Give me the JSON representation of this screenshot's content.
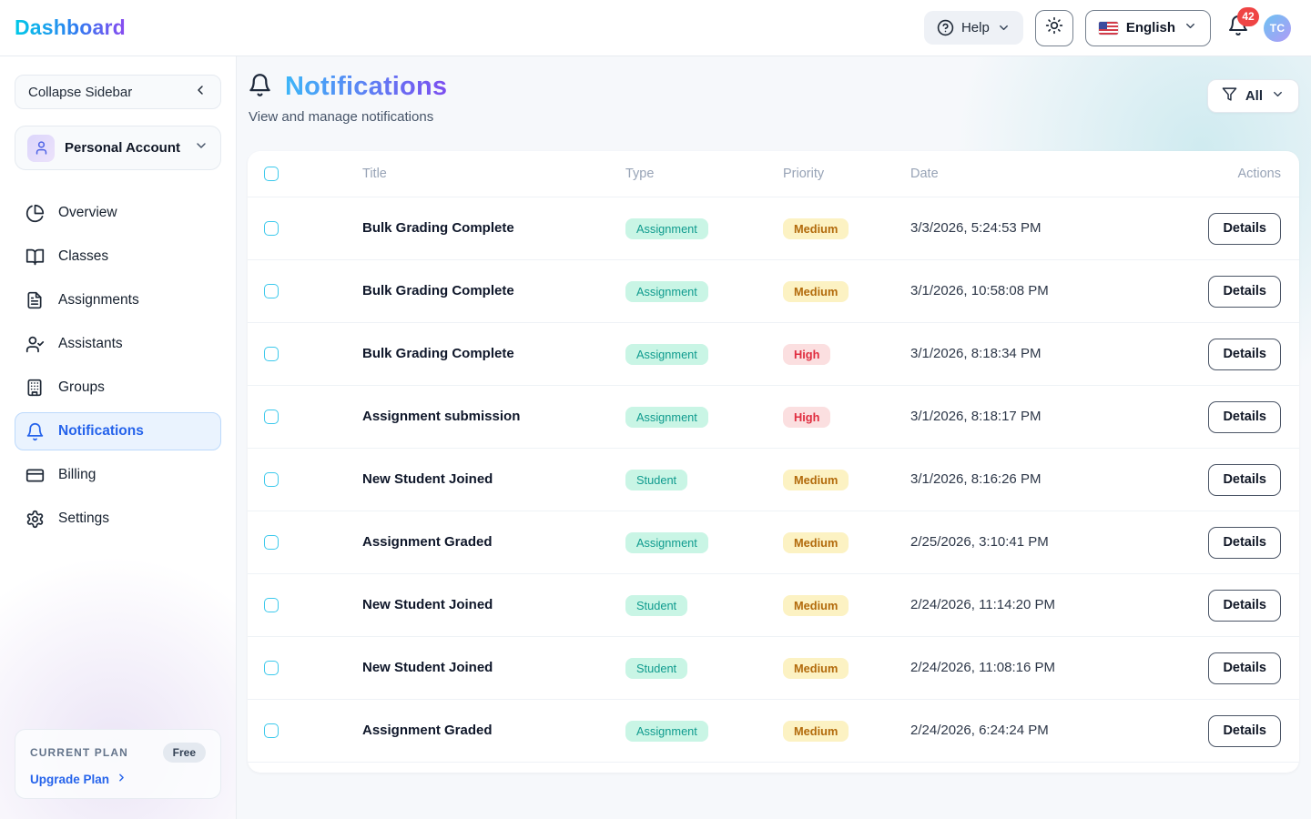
{
  "header": {
    "logo": "Dashboard",
    "help_label": "Help",
    "language": "English",
    "notification_count": "42",
    "avatar_initials": "TC"
  },
  "sidebar": {
    "collapse_label": "Collapse Sidebar",
    "account_label": "Personal Account",
    "items": [
      {
        "label": "Overview",
        "icon": "pie-chart-icon",
        "active": false
      },
      {
        "label": "Classes",
        "icon": "book-open-icon",
        "active": false
      },
      {
        "label": "Assignments",
        "icon": "file-text-icon",
        "active": false
      },
      {
        "label": "Assistants",
        "icon": "user-check-icon",
        "active": false
      },
      {
        "label": "Groups",
        "icon": "building-icon",
        "active": false
      },
      {
        "label": "Notifications",
        "icon": "bell-icon",
        "active": true
      },
      {
        "label": "Billing",
        "icon": "credit-card-icon",
        "active": false
      },
      {
        "label": "Settings",
        "icon": "gear-icon",
        "active": false
      }
    ],
    "plan": {
      "label": "CURRENT PLAN",
      "badge": "Free",
      "upgrade_label": "Upgrade Plan"
    }
  },
  "main": {
    "title": "Notifications",
    "subtitle": "View and manage notifications",
    "filter_label": "All",
    "table": {
      "columns": [
        "Title",
        "Type",
        "Priority",
        "Date",
        "Actions"
      ],
      "action_label": "Details",
      "rows": [
        {
          "title": "Bulk Grading Complete",
          "type": "Assignment",
          "priority": "Medium",
          "date": "3/3/2026, 5:24:53 PM"
        },
        {
          "title": "Bulk Grading Complete",
          "type": "Assignment",
          "priority": "Medium",
          "date": "3/1/2026, 10:58:08 PM"
        },
        {
          "title": "Bulk Grading Complete",
          "type": "Assignment",
          "priority": "High",
          "date": "3/1/2026, 8:18:34 PM"
        },
        {
          "title": "Assignment submission",
          "type": "Assignment",
          "priority": "High",
          "date": "3/1/2026, 8:18:17 PM"
        },
        {
          "title": "New Student Joined",
          "type": "Student",
          "priority": "Medium",
          "date": "3/1/2026, 8:16:26 PM"
        },
        {
          "title": "Assignment Graded",
          "type": "Assignment",
          "priority": "Medium",
          "date": "2/25/2026, 3:10:41 PM"
        },
        {
          "title": "New Student Joined",
          "type": "Student",
          "priority": "Medium",
          "date": "2/24/2026, 11:14:20 PM"
        },
        {
          "title": "New Student Joined",
          "type": "Student",
          "priority": "Medium",
          "date": "2/24/2026, 11:08:16 PM"
        },
        {
          "title": "Assignment Graded",
          "type": "Assignment",
          "priority": "Medium",
          "date": "2/24/2026, 6:24:24 PM"
        }
      ]
    }
  },
  "colors": {
    "accent_blue": "#2563eb",
    "badge_mint_bg": "#c9f5e5",
    "badge_mint_text": "#0f9b8e",
    "badge_yellow_bg": "#fcf2c3",
    "badge_yellow_text": "#b26a0b",
    "badge_red_bg": "#fbdfe0",
    "badge_red_text": "#e02d3f",
    "checkbox_border": "#3cc9ec",
    "notification_badge": "#ef4444"
  }
}
